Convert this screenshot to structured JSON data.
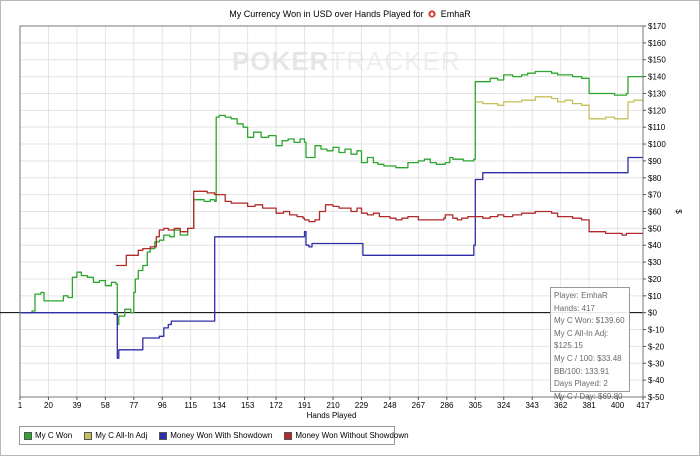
{
  "title": {
    "prefix": "My Currency Won in USD over Hands Played for",
    "player": "EmhaR"
  },
  "watermark": {
    "part1": "POKER",
    "part2": "TRACKER"
  },
  "colors": {
    "c_won": "#2ea52e",
    "allin_adj": "#c6c05a",
    "with_showdown": "#2e2ea8",
    "without_showdown": "#b02a2a",
    "zero_line": "#000000",
    "grid": "#e4e4e4"
  },
  "legend": {
    "items": [
      {
        "label": "My C Won",
        "color": "#2ea52e"
      },
      {
        "label": "My C All-In Adj",
        "color": "#c6c05a"
      },
      {
        "label": "Money Won With Showdown",
        "color": "#2e2ea8"
      },
      {
        "label": "Money Won Without Showdown",
        "color": "#b02a2a"
      }
    ]
  },
  "stats": [
    "Player: EmhaR",
    "Hands: 417",
    "My C Won: $139.60",
    "My C All-In Adj: $125.15",
    "My C / 100: $33.48",
    "BB/100: 133.91",
    "Days Played: 2",
    "My C / Day: $69.80"
  ],
  "chart_data": {
    "type": "line",
    "title": "My Currency Won in USD over Hands Played for EmhaR",
    "xlabel": "Hands Played",
    "ylabel": "$",
    "xlim": [
      1,
      417
    ],
    "ylim": [
      -50,
      170
    ],
    "x_ticks": [
      1,
      20,
      39,
      58,
      77,
      96,
      115,
      134,
      153,
      172,
      191,
      210,
      229,
      248,
      267,
      286,
      305,
      324,
      343,
      362,
      381,
      400,
      417
    ],
    "y_ticks": [
      -50,
      -40,
      -30,
      -20,
      -10,
      0,
      10,
      20,
      30,
      40,
      50,
      60,
      70,
      80,
      90,
      100,
      110,
      120,
      130,
      140,
      150,
      160,
      170
    ],
    "y_tick_labels": [
      "$-50",
      "$-40",
      "$-30",
      "$-20",
      "$-10",
      "$0",
      "$10",
      "$20",
      "$30",
      "$40",
      "$50",
      "$60",
      "$70",
      "$80",
      "$90",
      "$100",
      "$110",
      "$120",
      "$130",
      "$140",
      "$150",
      "$160",
      "$170"
    ],
    "grid": true,
    "y_axis_side": "right",
    "series": [
      {
        "name": "My C Won",
        "color": "#2ea52e",
        "points": [
          [
            1,
            0
          ],
          [
            5,
            0
          ],
          [
            9,
            1
          ],
          [
            11,
            11
          ],
          [
            15,
            12
          ],
          [
            17,
            7
          ],
          [
            22,
            7
          ],
          [
            27,
            7
          ],
          [
            30,
            10
          ],
          [
            33,
            9
          ],
          [
            36,
            21
          ],
          [
            39,
            24
          ],
          [
            42,
            22
          ],
          [
            46,
            21
          ],
          [
            50,
            18
          ],
          [
            54,
            19
          ],
          [
            58,
            16
          ],
          [
            62,
            18
          ],
          [
            65,
            17
          ],
          [
            66,
            -7
          ],
          [
            67,
            -2
          ],
          [
            71,
            2
          ],
          [
            75,
            0
          ],
          [
            77,
            12
          ],
          [
            78,
            20
          ],
          [
            80,
            25
          ],
          [
            83,
            28
          ],
          [
            86,
            36
          ],
          [
            88,
            38
          ],
          [
            91,
            42
          ],
          [
            94,
            43
          ],
          [
            97,
            46
          ],
          [
            101,
            45
          ],
          [
            104,
            49
          ],
          [
            108,
            46
          ],
          [
            111,
            46
          ],
          [
            113,
            50
          ],
          [
            115,
            50
          ],
          [
            117,
            67
          ],
          [
            120,
            67
          ],
          [
            124,
            66
          ],
          [
            128,
            67
          ],
          [
            131,
            66
          ],
          [
            132,
            116
          ],
          [
            134,
            117
          ],
          [
            138,
            116
          ],
          [
            142,
            115
          ],
          [
            146,
            112
          ],
          [
            150,
            110
          ],
          [
            153,
            104
          ],
          [
            157,
            107
          ],
          [
            162,
            104
          ],
          [
            167,
            105
          ],
          [
            172,
            99
          ],
          [
            176,
            102
          ],
          [
            180,
            103
          ],
          [
            184,
            101
          ],
          [
            188,
            103
          ],
          [
            191,
            101
          ],
          [
            192,
            92
          ],
          [
            195,
            92
          ],
          [
            198,
            99
          ],
          [
            202,
            97
          ],
          [
            206,
            96
          ],
          [
            210,
            98
          ],
          [
            214,
            95
          ],
          [
            218,
            97
          ],
          [
            222,
            94
          ],
          [
            226,
            96
          ],
          [
            229,
            89
          ],
          [
            233,
            92
          ],
          [
            237,
            89
          ],
          [
            240,
            88
          ],
          [
            244,
            87
          ],
          [
            248,
            87
          ],
          [
            252,
            86
          ],
          [
            256,
            86
          ],
          [
            260,
            89
          ],
          [
            264,
            89
          ],
          [
            267,
            90
          ],
          [
            271,
            91
          ],
          [
            275,
            89
          ],
          [
            279,
            88
          ],
          [
            282,
            88
          ],
          [
            285,
            89
          ],
          [
            288,
            92
          ],
          [
            290,
            91
          ],
          [
            292,
            91
          ],
          [
            297,
            90
          ],
          [
            300,
            90
          ],
          [
            304,
            91
          ],
          [
            305,
            137
          ],
          [
            310,
            137
          ],
          [
            315,
            139
          ],
          [
            320,
            138
          ],
          [
            324,
            141
          ],
          [
            330,
            140
          ],
          [
            336,
            141
          ],
          [
            340,
            142
          ],
          [
            345,
            143
          ],
          [
            350,
            143
          ],
          [
            356,
            142
          ],
          [
            360,
            141
          ],
          [
            365,
            141
          ],
          [
            370,
            140
          ],
          [
            376,
            139
          ],
          [
            381,
            130
          ],
          [
            386,
            130
          ],
          [
            392,
            130
          ],
          [
            398,
            129
          ],
          [
            403,
            129
          ],
          [
            406,
            130
          ],
          [
            407,
            140
          ],
          [
            411,
            140
          ],
          [
            417,
            139.6
          ]
        ]
      },
      {
        "name": "My C All-In Adj",
        "color": "#c6c05a",
        "points": [
          [
            305,
            125
          ],
          [
            310,
            124
          ],
          [
            315,
            124
          ],
          [
            320,
            123
          ],
          [
            324,
            125
          ],
          [
            330,
            125
          ],
          [
            336,
            126
          ],
          [
            340,
            126
          ],
          [
            345,
            128
          ],
          [
            350,
            128
          ],
          [
            356,
            127
          ],
          [
            360,
            125
          ],
          [
            365,
            126
          ],
          [
            370,
            124
          ],
          [
            376,
            123
          ],
          [
            381,
            115
          ],
          [
            386,
            115
          ],
          [
            392,
            116
          ],
          [
            398,
            115
          ],
          [
            403,
            115
          ],
          [
            406,
            115
          ],
          [
            407,
            125
          ],
          [
            411,
            126
          ],
          [
            417,
            125.15
          ]
        ]
      },
      {
        "name": "Money Won With Showdown",
        "color": "#2e2ea8",
        "points": [
          [
            1,
            0
          ],
          [
            20,
            0
          ],
          [
            39,
            0
          ],
          [
            58,
            0
          ],
          [
            64,
            -1
          ],
          [
            65,
            -1
          ],
          [
            66,
            -27
          ],
          [
            67,
            -22
          ],
          [
            72,
            -22
          ],
          [
            77,
            -22
          ],
          [
            82,
            -22
          ],
          [
            83,
            -15
          ],
          [
            88,
            -15
          ],
          [
            94,
            -14
          ],
          [
            97,
            -9
          ],
          [
            100,
            -7
          ],
          [
            102,
            -5
          ],
          [
            110,
            -5
          ],
          [
            120,
            -5
          ],
          [
            130,
            -5
          ],
          [
            131,
            45
          ],
          [
            140,
            45
          ],
          [
            160,
            45
          ],
          [
            180,
            45
          ],
          [
            190,
            45
          ],
          [
            191,
            48
          ],
          [
            192,
            40
          ],
          [
            194,
            39
          ],
          [
            196,
            41
          ],
          [
            210,
            41
          ],
          [
            220,
            41
          ],
          [
            229,
            41
          ],
          [
            230,
            34
          ],
          [
            250,
            34
          ],
          [
            270,
            34
          ],
          [
            290,
            34
          ],
          [
            303,
            34
          ],
          [
            304,
            40
          ],
          [
            305,
            79
          ],
          [
            308,
            79
          ],
          [
            310,
            83
          ],
          [
            330,
            83
          ],
          [
            350,
            83
          ],
          [
            370,
            83
          ],
          [
            390,
            83
          ],
          [
            406,
            83
          ],
          [
            407,
            92
          ],
          [
            411,
            92
          ],
          [
            417,
            92
          ]
        ]
      },
      {
        "name": "Money Won Without Showdown",
        "color": "#b02a2a",
        "points": [
          [
            65,
            28
          ],
          [
            68,
            28
          ],
          [
            72,
            34
          ],
          [
            76,
            34
          ],
          [
            80,
            37
          ],
          [
            83,
            38
          ],
          [
            88,
            39
          ],
          [
            92,
            45
          ],
          [
            94,
            49
          ],
          [
            97,
            50
          ],
          [
            100,
            49
          ],
          [
            104,
            50
          ],
          [
            108,
            48
          ],
          [
            111,
            48
          ],
          [
            113,
            50
          ],
          [
            115,
            50
          ],
          [
            117,
            72
          ],
          [
            122,
            72
          ],
          [
            126,
            71
          ],
          [
            131,
            70
          ],
          [
            135,
            70
          ],
          [
            138,
            66
          ],
          [
            142,
            65
          ],
          [
            146,
            65
          ],
          [
            150,
            65
          ],
          [
            153,
            63
          ],
          [
            158,
            64
          ],
          [
            163,
            62
          ],
          [
            167,
            62
          ],
          [
            172,
            59
          ],
          [
            177,
            60
          ],
          [
            181,
            58
          ],
          [
            186,
            57
          ],
          [
            190,
            56
          ],
          [
            191,
            55
          ],
          [
            194,
            54
          ],
          [
            198,
            55
          ],
          [
            201,
            60
          ],
          [
            205,
            64
          ],
          [
            210,
            63
          ],
          [
            214,
            62
          ],
          [
            218,
            62
          ],
          [
            222,
            60
          ],
          [
            226,
            62
          ],
          [
            229,
            59
          ],
          [
            233,
            58
          ],
          [
            237,
            59
          ],
          [
            241,
            57
          ],
          [
            245,
            57
          ],
          [
            248,
            56
          ],
          [
            252,
            55
          ],
          [
            256,
            56
          ],
          [
            260,
            57
          ],
          [
            264,
            57
          ],
          [
            267,
            55
          ],
          [
            272,
            55
          ],
          [
            276,
            55
          ],
          [
            280,
            55
          ],
          [
            284,
            56
          ],
          [
            285,
            58
          ],
          [
            288,
            58
          ],
          [
            290,
            56
          ],
          [
            293,
            55
          ],
          [
            296,
            56
          ],
          [
            300,
            57
          ],
          [
            304,
            57
          ],
          [
            310,
            56
          ],
          [
            315,
            57
          ],
          [
            320,
            58
          ],
          [
            324,
            57
          ],
          [
            330,
            58
          ],
          [
            336,
            59
          ],
          [
            340,
            59
          ],
          [
            345,
            60
          ],
          [
            350,
            60
          ],
          [
            356,
            59
          ],
          [
            360,
            57
          ],
          [
            365,
            57
          ],
          [
            370,
            56
          ],
          [
            376,
            55
          ],
          [
            381,
            48
          ],
          [
            386,
            48
          ],
          [
            392,
            47
          ],
          [
            398,
            47
          ],
          [
            403,
            46
          ],
          [
            406,
            47
          ],
          [
            410,
            47
          ],
          [
            417,
            47
          ]
        ]
      }
    ]
  }
}
